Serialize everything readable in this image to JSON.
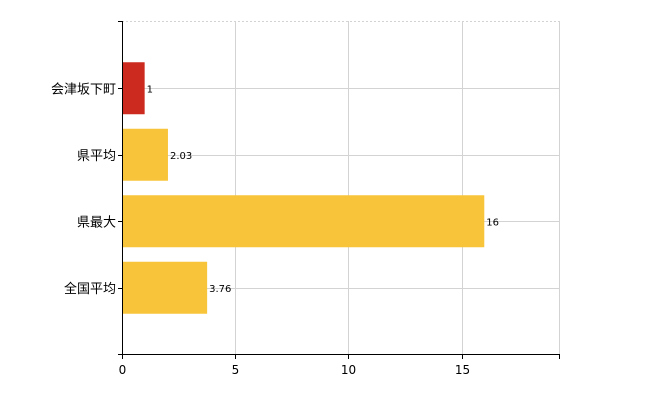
{
  "chart_data": {
    "type": "bar",
    "orientation": "horizontal",
    "categories": [
      "会津坂下町",
      "県平均",
      "県最大",
      "全国平均"
    ],
    "values": [
      1,
      2.03,
      16,
      3.76
    ],
    "value_labels": [
      "1",
      "2.03",
      "16",
      "3.76"
    ],
    "bar_colors": [
      "#cc2a1f",
      "#f8c53a",
      "#f8c53a",
      "#f8c53a"
    ],
    "xlim": [
      0,
      19.3
    ],
    "xticks": [
      0,
      5,
      10,
      15
    ],
    "grid": true,
    "legend": "none"
  },
  "colors": {
    "highlight": "#cc2a1f",
    "bar": "#f8c53a",
    "grid": "#d3d3d3",
    "axis": "#000000"
  }
}
